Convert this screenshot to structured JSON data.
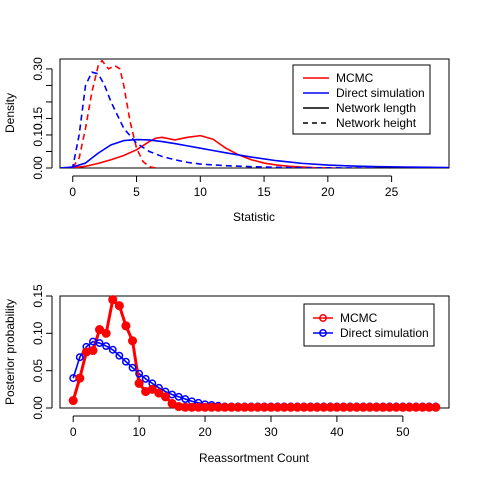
{
  "chart_data": [
    {
      "type": "line",
      "xlabel": "Statistic",
      "ylabel": "Density",
      "xlim": [
        -1,
        29.5
      ],
      "ylim": [
        0,
        0.33
      ],
      "xticks": [
        0,
        5,
        10,
        15,
        20,
        25
      ],
      "yticks": [
        0.0,
        0.05,
        0.1,
        0.15,
        0.2,
        0.25,
        0.3
      ],
      "ytick_labels": [
        "0.00",
        "",
        "0.10",
        "0.15",
        "",
        "",
        "0.30"
      ],
      "legend_position": "top-right",
      "legend": [
        {
          "label": "MCMC",
          "color": "#ff0000",
          "dash": "solid"
        },
        {
          "label": "Direct simulation",
          "color": "#0000ff",
          "dash": "solid"
        },
        {
          "label": "Network length",
          "color": "#000000",
          "dash": "solid"
        },
        {
          "label": "Network height",
          "color": "#000000",
          "dash": "dashed"
        }
      ],
      "series": [
        {
          "color": "#ff0000",
          "dash": "solid",
          "x": [
            -1,
            0,
            1,
            2,
            3,
            4,
            5,
            6,
            6.5,
            7,
            8,
            9,
            10,
            11,
            12,
            13,
            14,
            15,
            16,
            17,
            18,
            19,
            20,
            20.5
          ],
          "y": [
            0,
            0.001,
            0.005,
            0.014,
            0.025,
            0.038,
            0.055,
            0.08,
            0.09,
            0.093,
            0.085,
            0.093,
            0.098,
            0.087,
            0.06,
            0.04,
            0.025,
            0.015,
            0.009,
            0.005,
            0.003,
            0.001,
            0.0003,
            0
          ]
        },
        {
          "color": "#ff0000",
          "dash": "dashed",
          "x": [
            0,
            0.5,
            1,
            1.5,
            2,
            2.3,
            2.8,
            3.3,
            3.7,
            4,
            4.5,
            5,
            5.5,
            6,
            6.5
          ],
          "y": [
            0.002,
            0.03,
            0.12,
            0.23,
            0.31,
            0.325,
            0.3,
            0.31,
            0.3,
            0.25,
            0.14,
            0.06,
            0.02,
            0.004,
            0
          ]
        },
        {
          "color": "#0000ff",
          "dash": "solid",
          "x": [
            -1,
            0,
            1,
            2,
            3,
            4,
            5,
            6,
            7,
            8,
            9,
            10,
            11,
            12,
            14,
            16,
            18,
            20,
            22,
            24,
            26,
            28,
            29.5
          ],
          "y": [
            0,
            0.003,
            0.015,
            0.045,
            0.07,
            0.083,
            0.086,
            0.085,
            0.08,
            0.074,
            0.067,
            0.06,
            0.053,
            0.046,
            0.033,
            0.022,
            0.014,
            0.009,
            0.006,
            0.004,
            0.003,
            0.002,
            0.0015
          ]
        },
        {
          "color": "#0000ff",
          "dash": "dashed",
          "x": [
            -1,
            0,
            0.5,
            1,
            1.5,
            2,
            2.5,
            3,
            3.5,
            4,
            5,
            6,
            7,
            8,
            9,
            10,
            12,
            14,
            16,
            18,
            20,
            22,
            23.5
          ],
          "y": [
            0,
            0.003,
            0.1,
            0.25,
            0.29,
            0.285,
            0.25,
            0.2,
            0.16,
            0.12,
            0.075,
            0.05,
            0.035,
            0.025,
            0.017,
            0.012,
            0.007,
            0.004,
            0.002,
            0.001,
            0.0005,
            0.0002,
            0
          ]
        }
      ]
    },
    {
      "type": "line",
      "xlabel": "Reassortment Count",
      "ylabel": "Posterior probability",
      "xlim": [
        -2,
        57
      ],
      "ylim": [
        0,
        0.15
      ],
      "xticks": [
        0,
        10,
        20,
        30,
        40,
        50
      ],
      "yticks": [
        0.0,
        0.05,
        0.1,
        0.15
      ],
      "ytick_labels": [
        "0.00",
        "0.05",
        "0.10",
        "0.15"
      ],
      "legend_position": "top-right",
      "legend": [
        {
          "label": "MCMC",
          "color": "#ff0000"
        },
        {
          "label": "Direct simulation",
          "color": "#0000ff"
        }
      ],
      "series": [
        {
          "color": "#ff0000",
          "filled": true,
          "x": [
            0,
            1,
            2,
            3,
            4,
            5,
            6,
            7,
            8,
            9,
            10,
            11,
            12,
            13,
            14,
            15,
            16,
            17,
            18,
            19,
            20,
            21,
            22,
            23,
            24,
            25,
            26,
            27,
            28,
            29,
            30,
            31,
            32,
            33,
            34,
            35,
            36,
            37,
            38,
            39,
            40,
            41,
            42,
            43,
            44,
            45,
            46,
            47,
            48,
            49,
            50,
            51,
            52,
            53,
            54,
            55
          ],
          "values": [
            0.01,
            0.04,
            0.075,
            0.077,
            0.105,
            0.1,
            0.145,
            0.137,
            0.11,
            0.09,
            0.033,
            0.022,
            0.025,
            0.02,
            0.015,
            0.006,
            0.002,
            0.001,
            0.001,
            0.001,
            0.001,
            0.001,
            0.001,
            0.001,
            0.001,
            0.001,
            0.001,
            0.001,
            0.001,
            0.001,
            0.001,
            0.001,
            0.001,
            0.001,
            0.001,
            0.001,
            0.001,
            0.001,
            0.001,
            0.001,
            0.001,
            0.001,
            0.001,
            0.001,
            0.001,
            0.001,
            0.001,
            0.001,
            0.001,
            0.001,
            0.001,
            0.001,
            0.001,
            0.001,
            0.001,
            0.001
          ]
        },
        {
          "color": "#0000ff",
          "filled": false,
          "x": [
            0,
            1,
            2,
            3,
            4,
            5,
            6,
            7,
            8,
            9,
            10,
            11,
            12,
            13,
            14,
            15,
            16,
            17,
            18,
            19,
            20,
            21,
            22,
            23,
            24,
            25,
            26,
            27,
            28,
            29,
            30,
            31,
            32,
            33,
            34,
            35,
            36,
            37,
            38,
            39,
            40,
            41,
            42,
            43,
            44,
            45,
            46,
            47,
            48,
            49,
            50,
            51,
            52,
            53,
            54,
            55
          ],
          "values": [
            0.04,
            0.068,
            0.082,
            0.089,
            0.087,
            0.083,
            0.078,
            0.07,
            0.062,
            0.054,
            0.046,
            0.039,
            0.033,
            0.027,
            0.022,
            0.018,
            0.015,
            0.012,
            0.009,
            0.007,
            0.005,
            0.004,
            0.003,
            0.002,
            0.002,
            0.002,
            0.002,
            0.002,
            0.002,
            0.002,
            0.002,
            0.002,
            0.002,
            0.002,
            0.002,
            0.002,
            0.002,
            0.002,
            0.002,
            0.002,
            0.002,
            0.002,
            0.002,
            0.002,
            0.002,
            0.002,
            0.002,
            0.002,
            0.002,
            0.002,
            0.002,
            0.002,
            0.002,
            0.002,
            0.002,
            0.002
          ]
        }
      ]
    }
  ]
}
